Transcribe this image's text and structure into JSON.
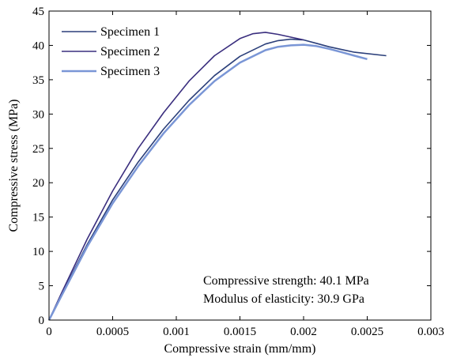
{
  "chart_data": {
    "type": "line",
    "title": "",
    "xlabel": "Compressive strain (mm/mm)",
    "ylabel": "Compressive stress (MPa)",
    "xlim": [
      0,
      0.003
    ],
    "ylim": [
      0,
      45
    ],
    "xticks": [
      0,
      0.0005,
      0.001,
      0.0015,
      0.002,
      0.0025,
      0.003
    ],
    "xtick_labels": [
      "0",
      "0.0005",
      "0.001",
      "0.0015",
      "0.002",
      "0.0025",
      "0.003"
    ],
    "yticks": [
      0,
      5,
      10,
      15,
      20,
      25,
      30,
      35,
      40,
      45
    ],
    "ytick_labels": [
      "0",
      "5",
      "10",
      "15",
      "20",
      "25",
      "30",
      "35",
      "40",
      "45"
    ],
    "grid": false,
    "legend_position": "top-left",
    "annotations": [
      "Compressive strength: 40.1 MPa",
      "Modulus of elasticity: 30.9 GPa"
    ],
    "series": [
      {
        "name": "Specimen 1",
        "color": "#2b3f7a",
        "x": [
          0,
          0.0001,
          0.0003,
          0.0005,
          0.0007,
          0.0009,
          0.0011,
          0.0013,
          0.0015,
          0.0017,
          0.0018,
          0.0019,
          0.002,
          0.0021,
          0.0022,
          0.0023,
          0.0024,
          0.00265
        ],
        "y": [
          0,
          3.8,
          11.0,
          17.5,
          23.0,
          27.8,
          32.0,
          35.6,
          38.4,
          40.2,
          40.7,
          40.9,
          40.8,
          40.3,
          39.8,
          39.4,
          39.0,
          38.5
        ]
      },
      {
        "name": "Specimen 2",
        "color": "#3a2e7e",
        "x": [
          0,
          0.0001,
          0.0003,
          0.0005,
          0.0007,
          0.0009,
          0.0011,
          0.0013,
          0.0015,
          0.0016,
          0.0017,
          0.0018,
          0.0019,
          0.002
        ],
        "y": [
          0,
          4.0,
          11.8,
          18.8,
          25.0,
          30.2,
          34.8,
          38.5,
          41.0,
          41.7,
          41.9,
          41.6,
          41.2,
          40.8
        ]
      },
      {
        "name": "Specimen 3",
        "color": "#7a96d6",
        "x": [
          0,
          0.0001,
          0.0003,
          0.0005,
          0.0007,
          0.0009,
          0.0011,
          0.0013,
          0.0015,
          0.0017,
          0.0018,
          0.0019,
          0.002,
          0.0021,
          0.0022,
          0.0023,
          0.0024,
          0.0025
        ],
        "y": [
          0,
          3.6,
          10.7,
          17.0,
          22.4,
          27.2,
          31.3,
          34.8,
          37.5,
          39.3,
          39.8,
          40.0,
          40.1,
          39.9,
          39.5,
          39.0,
          38.5,
          38.0
        ]
      }
    ]
  }
}
